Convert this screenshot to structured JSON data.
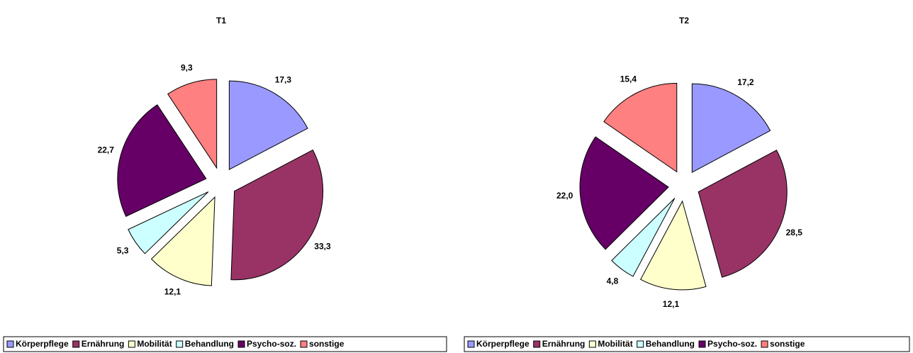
{
  "chart_data": [
    {
      "type": "pie",
      "title": "T1",
      "categories": [
        "Körperpflege",
        "Ernährung",
        "Mobilität",
        "Behandlung",
        "Psycho-soz.",
        "sonstige"
      ],
      "values": [
        17.3,
        33.3,
        12.1,
        5.3,
        22.7,
        9.3
      ],
      "value_labels": [
        "17,3",
        "33,3",
        "12,1",
        "5,3",
        "22,7",
        "9,3"
      ],
      "colors": [
        "#9999ff",
        "#993366",
        "#ffffcc",
        "#ccffff",
        "#660066",
        "#ff8080"
      ]
    },
    {
      "type": "pie",
      "title": "T2",
      "categories": [
        "Körperpflege",
        "Ernährung",
        "Mobilität",
        "Behandlung",
        "Psycho-soz.",
        "sonstige"
      ],
      "values": [
        17.2,
        28.5,
        12.1,
        4.8,
        22.0,
        15.4
      ],
      "value_labels": [
        "17,2",
        "28,5",
        "12,1",
        "4,8",
        "22,0",
        "15,4"
      ],
      "colors": [
        "#9999ff",
        "#993366",
        "#ffffcc",
        "#ccffff",
        "#660066",
        "#ff8080"
      ]
    }
  ]
}
